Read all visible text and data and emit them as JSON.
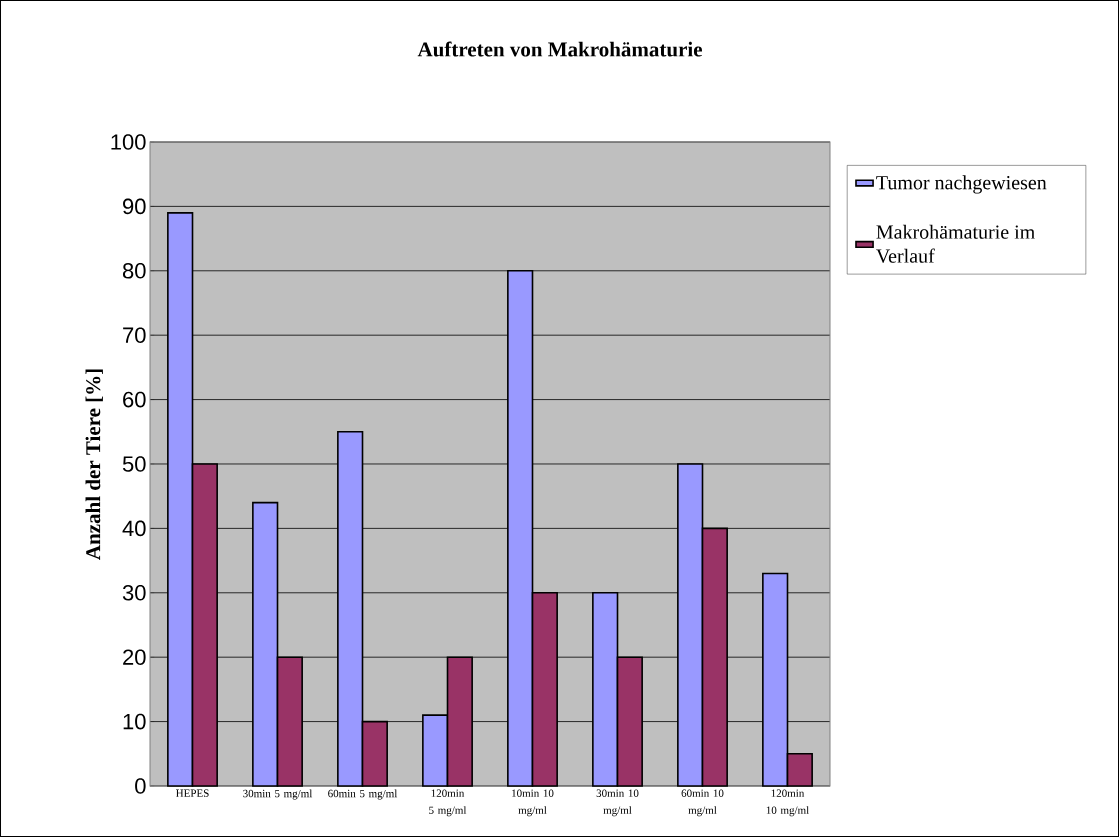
{
  "chart_data": {
    "type": "bar",
    "title": "Auftreten von Makrohämaturie",
    "ylabel": "Anzahl der Tiere [%]",
    "categories": [
      "HEPES",
      "30min  5 mg/ml",
      "60min  5 mg/ml",
      "120min 5 mg/ml",
      "10min 10 mg/ml",
      "30min 10 mg/ml",
      "60min 10 mg/ml",
      "120min 10 mg/ml"
    ],
    "series": [
      {
        "name": "Tumor nachgewiesen",
        "color": "#9999ff",
        "values": [
          89,
          44,
          55,
          11,
          80,
          30,
          50,
          33
        ]
      },
      {
        "name": "Makrohämaturie im Verlauf",
        "color": "#993366",
        "values": [
          50,
          20,
          10,
          20,
          30,
          20,
          40,
          5
        ]
      }
    ],
    "ylim": [
      0,
      100
    ],
    "yticks": [
      0,
      10,
      20,
      30,
      40,
      50,
      60,
      70,
      80,
      90,
      100
    ],
    "grid": "y",
    "legend": "right"
  }
}
